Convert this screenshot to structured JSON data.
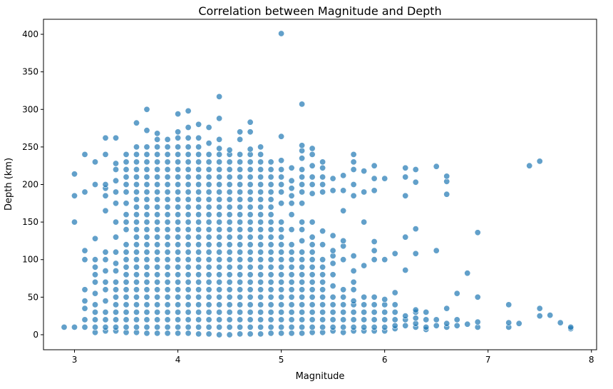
{
  "chart_data": {
    "type": "scatter",
    "title": "Correlation between Magnitude and Depth",
    "xlabel": "Magnitude",
    "ylabel": "Depth (km)",
    "xlim": [
      2.7,
      8.05
    ],
    "ylim": [
      -20,
      420
    ],
    "xticks": [
      3,
      4,
      5,
      6,
      7,
      8
    ],
    "yticks": [
      0,
      50,
      100,
      150,
      200,
      250,
      300,
      350,
      400
    ],
    "grid": false,
    "legend": "none",
    "point_color": "#1f77b4",
    "columns": [
      {
        "x": 2.9,
        "y": [
          10
        ]
      },
      {
        "x": 3.0,
        "y": [
          10,
          150,
          185,
          214
        ]
      },
      {
        "x": 3.1,
        "y": [
          10,
          20,
          35,
          45,
          60,
          100,
          112,
          190,
          240
        ]
      },
      {
        "x": 3.2,
        "y": [
          3,
          10,
          20,
          30,
          40,
          55,
          70,
          80,
          90,
          100,
          128,
          200,
          230
        ]
      },
      {
        "x": 3.3,
        "y": [
          5,
          10,
          20,
          30,
          45,
          60,
          70,
          85,
          100,
          110,
          165,
          185,
          195,
          200,
          240,
          262
        ]
      },
      {
        "x": 3.4,
        "y": [
          5,
          10,
          20,
          30,
          40,
          50,
          60,
          70,
          85,
          95,
          110,
          130,
          150,
          175,
          190,
          205,
          220,
          228,
          262
        ]
      },
      {
        "x": 3.5,
        "y": [
          3,
          10,
          20,
          30,
          40,
          50,
          60,
          70,
          80,
          90,
          100,
          110,
          120,
          140,
          150,
          160,
          175,
          190,
          200,
          210,
          220,
          230,
          240
        ]
      },
      {
        "x": 3.6,
        "y": [
          3,
          10,
          20,
          30,
          40,
          50,
          60,
          70,
          80,
          90,
          100,
          110,
          120,
          130,
          140,
          150,
          160,
          170,
          180,
          190,
          200,
          210,
          220,
          230,
          240,
          250,
          282
        ]
      },
      {
        "x": 3.7,
        "y": [
          2,
          10,
          20,
          30,
          40,
          50,
          60,
          70,
          80,
          90,
          100,
          110,
          120,
          130,
          140,
          150,
          160,
          170,
          180,
          190,
          200,
          210,
          220,
          230,
          240,
          250,
          272,
          300
        ]
      },
      {
        "x": 3.8,
        "y": [
          2,
          10,
          20,
          30,
          40,
          50,
          60,
          70,
          80,
          90,
          100,
          110,
          120,
          130,
          140,
          150,
          160,
          170,
          180,
          190,
          200,
          210,
          220,
          230,
          240,
          250,
          260,
          268
        ]
      },
      {
        "x": 3.9,
        "y": [
          2,
          10,
          20,
          30,
          40,
          50,
          60,
          70,
          80,
          90,
          100,
          110,
          120,
          130,
          140,
          150,
          160,
          170,
          180,
          190,
          200,
          210,
          220,
          230,
          240,
          250,
          260
        ]
      },
      {
        "x": 4.0,
        "y": [
          2,
          10,
          20,
          30,
          40,
          50,
          60,
          70,
          80,
          90,
          100,
          110,
          120,
          130,
          140,
          150,
          160,
          170,
          180,
          190,
          200,
          210,
          220,
          230,
          240,
          250,
          262,
          270,
          294
        ]
      },
      {
        "x": 4.1,
        "y": [
          2,
          10,
          20,
          30,
          40,
          50,
          60,
          70,
          80,
          90,
          100,
          110,
          120,
          130,
          140,
          150,
          160,
          170,
          180,
          190,
          200,
          210,
          220,
          230,
          240,
          250,
          262,
          276,
          298
        ]
      },
      {
        "x": 4.2,
        "y": [
          1,
          10,
          20,
          30,
          40,
          50,
          60,
          70,
          80,
          90,
          100,
          110,
          120,
          130,
          140,
          150,
          160,
          170,
          180,
          190,
          200,
          210,
          220,
          230,
          240,
          250,
          262,
          280
        ]
      },
      {
        "x": 4.3,
        "y": [
          1,
          10,
          20,
          30,
          40,
          50,
          60,
          70,
          80,
          90,
          100,
          110,
          120,
          130,
          140,
          150,
          160,
          170,
          180,
          190,
          200,
          210,
          220,
          230,
          240,
          255,
          276
        ]
      },
      {
        "x": 4.4,
        "y": [
          0,
          10,
          20,
          30,
          40,
          50,
          60,
          70,
          80,
          90,
          100,
          110,
          120,
          130,
          140,
          150,
          160,
          170,
          180,
          190,
          200,
          210,
          220,
          230,
          240,
          248,
          260,
          288,
          317
        ]
      },
      {
        "x": 4.5,
        "y": [
          0,
          10,
          20,
          30,
          40,
          50,
          60,
          70,
          80,
          90,
          100,
          110,
          120,
          130,
          140,
          150,
          160,
          170,
          180,
          190,
          200,
          210,
          220,
          230,
          240,
          246
        ]
      },
      {
        "x": 4.6,
        "y": [
          1,
          10,
          20,
          30,
          40,
          50,
          60,
          70,
          80,
          90,
          100,
          110,
          120,
          130,
          140,
          150,
          160,
          170,
          180,
          190,
          200,
          210,
          220,
          230,
          240,
          260,
          270
        ]
      },
      {
        "x": 4.7,
        "y": [
          1,
          10,
          20,
          30,
          40,
          50,
          60,
          70,
          80,
          90,
          100,
          110,
          120,
          130,
          140,
          150,
          160,
          170,
          180,
          190,
          200,
          210,
          220,
          230,
          240,
          247,
          270,
          283
        ]
      },
      {
        "x": 4.8,
        "y": [
          1,
          10,
          20,
          30,
          40,
          50,
          60,
          70,
          80,
          90,
          100,
          110,
          120,
          130,
          140,
          150,
          160,
          170,
          180,
          190,
          200,
          210,
          220,
          230,
          240,
          250
        ]
      },
      {
        "x": 4.9,
        "y": [
          2,
          10,
          20,
          30,
          40,
          50,
          60,
          70,
          80,
          90,
          100,
          110,
          120,
          130,
          140,
          150,
          160,
          170,
          180,
          190,
          200,
          210,
          220,
          230
        ]
      },
      {
        "x": 5.0,
        "y": [
          2,
          10,
          20,
          30,
          40,
          50,
          60,
          70,
          80,
          90,
          100,
          110,
          120,
          130,
          140,
          150,
          175,
          190,
          200,
          210,
          220,
          232,
          264,
          401
        ]
      },
      {
        "x": 5.1,
        "y": [
          2,
          10,
          20,
          30,
          40,
          50,
          60,
          70,
          80,
          90,
          100,
          110,
          120,
          140,
          160,
          175,
          185,
          195,
          205,
          222
        ]
      },
      {
        "x": 5.2,
        "y": [
          2,
          10,
          20,
          30,
          40,
          50,
          60,
          70,
          80,
          90,
          100,
          110,
          125,
          140,
          150,
          175,
          190,
          200,
          210,
          220,
          235,
          245,
          252,
          307
        ]
      },
      {
        "x": 5.3,
        "y": [
          3,
          10,
          20,
          30,
          40,
          50,
          60,
          70,
          80,
          90,
          100,
          110,
          120,
          130,
          150,
          188,
          200,
          210,
          225,
          240,
          248
        ]
      },
      {
        "x": 5.4,
        "y": [
          3,
          10,
          20,
          30,
          40,
          50,
          60,
          70,
          80,
          90,
          100,
          120,
          138,
          190,
          200,
          210,
          222,
          230
        ]
      },
      {
        "x": 5.5,
        "y": [
          5,
          10,
          20,
          30,
          40,
          50,
          65,
          80,
          95,
          105,
          112,
          132,
          192,
          208
        ]
      },
      {
        "x": 5.6,
        "y": [
          3,
          10,
          20,
          30,
          40,
          50,
          60,
          100,
          118,
          125,
          165,
          192,
          212
        ]
      },
      {
        "x": 5.7,
        "y": [
          5,
          10,
          20,
          30,
          40,
          45,
          60,
          70,
          85,
          105,
          185,
          200,
          220,
          230,
          240
        ]
      },
      {
        "x": 5.8,
        "y": [
          5,
          10,
          20,
          30,
          40,
          50,
          92,
          150,
          190,
          218
        ]
      },
      {
        "x": 5.9,
        "y": [
          5,
          10,
          20,
          30,
          40,
          50,
          100,
          112,
          124,
          192,
          208,
          225
        ]
      },
      {
        "x": 6.0,
        "y": [
          5,
          10,
          20,
          30,
          40,
          47,
          100,
          208
        ]
      },
      {
        "x": 6.1,
        "y": [
          8,
          12,
          20,
          30,
          40,
          56,
          108
        ]
      },
      {
        "x": 6.2,
        "y": [
          12,
          20,
          25,
          86,
          130,
          185,
          210,
          222
        ]
      },
      {
        "x": 6.3,
        "y": [
          10,
          15,
          22,
          30,
          33,
          108,
          141,
          203,
          220
        ]
      },
      {
        "x": 6.4,
        "y": [
          7,
          10,
          20,
          30
        ]
      },
      {
        "x": 6.5,
        "y": [
          12,
          20,
          112,
          224
        ]
      },
      {
        "x": 6.6,
        "y": [
          10,
          15,
          35,
          187,
          204,
          211
        ]
      },
      {
        "x": 6.7,
        "y": [
          12,
          20,
          55
        ]
      },
      {
        "x": 6.8,
        "y": [
          14,
          82
        ]
      },
      {
        "x": 6.9,
        "y": [
          10,
          17,
          50,
          136
        ]
      },
      {
        "x": 7.2,
        "y": [
          10,
          16,
          40
        ]
      },
      {
        "x": 7.3,
        "y": [
          15
        ]
      },
      {
        "x": 7.4,
        "y": [
          225
        ]
      },
      {
        "x": 7.5,
        "y": [
          25,
          35,
          231
        ]
      },
      {
        "x": 7.6,
        "y": [
          26
        ]
      },
      {
        "x": 7.7,
        "y": [
          16
        ]
      },
      {
        "x": 7.8,
        "y": [
          8,
          10
        ]
      }
    ]
  }
}
